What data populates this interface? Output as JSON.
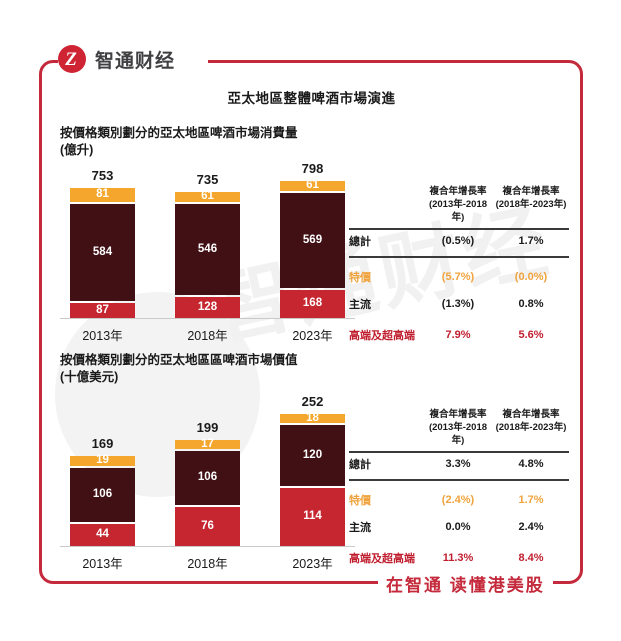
{
  "brand": {
    "logo_text": "智通财经",
    "logo_glyph": "Z",
    "watermark_text": "智通财经",
    "footer_text": "在智通  读懂港美股"
  },
  "page_title": "亞太地區整體啤酒市場演進",
  "colors": {
    "frame_red": "#C42A3B",
    "logo_red": "#CE2433",
    "bar_orange": "#F5A62C",
    "bar_dark_maroon": "#401015",
    "bar_red": "#C5262F",
    "table_orange_text": "#F0A33C",
    "table_crimson_text": "#C01E2E",
    "axis_gray": "#C9C9C9",
    "text_dark": "#1A1A1A"
  },
  "chart_data": [
    {
      "type": "bar",
      "stacked": true,
      "title": "按價格類別劃分的亞太地區啤酒市場消費量",
      "unit": "(億升)",
      "categories": [
        "2013年",
        "2018年",
        "2023年"
      ],
      "totals": [
        753,
        735,
        798
      ],
      "series": [
        {
          "name": "特價",
          "color": "#F5A62C",
          "values": [
            81,
            61,
            61
          ]
        },
        {
          "name": "主流",
          "color": "#401015",
          "values": [
            584,
            546,
            569
          ]
        },
        {
          "name": "高端及超高端",
          "color": "#C5262F",
          "values": [
            87,
            128,
            168
          ]
        }
      ],
      "legend": "none",
      "grid": false,
      "value_labels": "inside-white"
    },
    {
      "type": "bar",
      "stacked": true,
      "title": "按價格類別劃分的亞太地區區啤酒市場價值",
      "unit": "(十億美元)",
      "categories": [
        "2013年",
        "2018年",
        "2023年"
      ],
      "totals": [
        169,
        199,
        252
      ],
      "series": [
        {
          "name": "特價",
          "color": "#F5A62C",
          "values": [
            19,
            17,
            18
          ]
        },
        {
          "name": "主流",
          "color": "#401015",
          "values": [
            106,
            106,
            120
          ]
        },
        {
          "name": "高端及超高端",
          "color": "#C5262F",
          "values": [
            44,
            76,
            114
          ]
        }
      ],
      "legend": "none",
      "grid": false,
      "value_labels": "inside-white"
    }
  ],
  "tables": [
    {
      "col_headers": [
        {
          "line1": "複合年增長率",
          "line2": "(2013年-2018年)"
        },
        {
          "line1": "複合年增長率",
          "line2": "(2018年-2023年)"
        }
      ],
      "rows": [
        {
          "label": "總計",
          "v1": "(0.5%)",
          "v2": "1.7%",
          "color": "#1A1A1A"
        },
        {
          "label": "特價",
          "v1": "(5.7%)",
          "v2": "(0.0%)",
          "color": "#F0A33C"
        },
        {
          "label": "主流",
          "v1": "(1.3%)",
          "v2": "0.8%",
          "color": "#1A1A1A"
        },
        {
          "label": "高端及超高端",
          "v1": "7.9%",
          "v2": "5.6%",
          "color": "#C01E2E"
        }
      ]
    },
    {
      "col_headers": [
        {
          "line1": "複合年增長率",
          "line2": "(2013年-2018年)"
        },
        {
          "line1": "複合年增長率",
          "line2": "(2018年-2023年)"
        }
      ],
      "rows": [
        {
          "label": "總計",
          "v1": "3.3%",
          "v2": "4.8%",
          "color": "#1A1A1A"
        },
        {
          "label": "特價",
          "v1": "(2.4%)",
          "v2": "1.7%",
          "color": "#F0A33C"
        },
        {
          "label": "主流",
          "v1": "0.0%",
          "v2": "2.4%",
          "color": "#1A1A1A"
        },
        {
          "label": "高端及超高端",
          "v1": "11.3%",
          "v2": "8.4%",
          "color": "#C01E2E"
        }
      ]
    }
  ]
}
